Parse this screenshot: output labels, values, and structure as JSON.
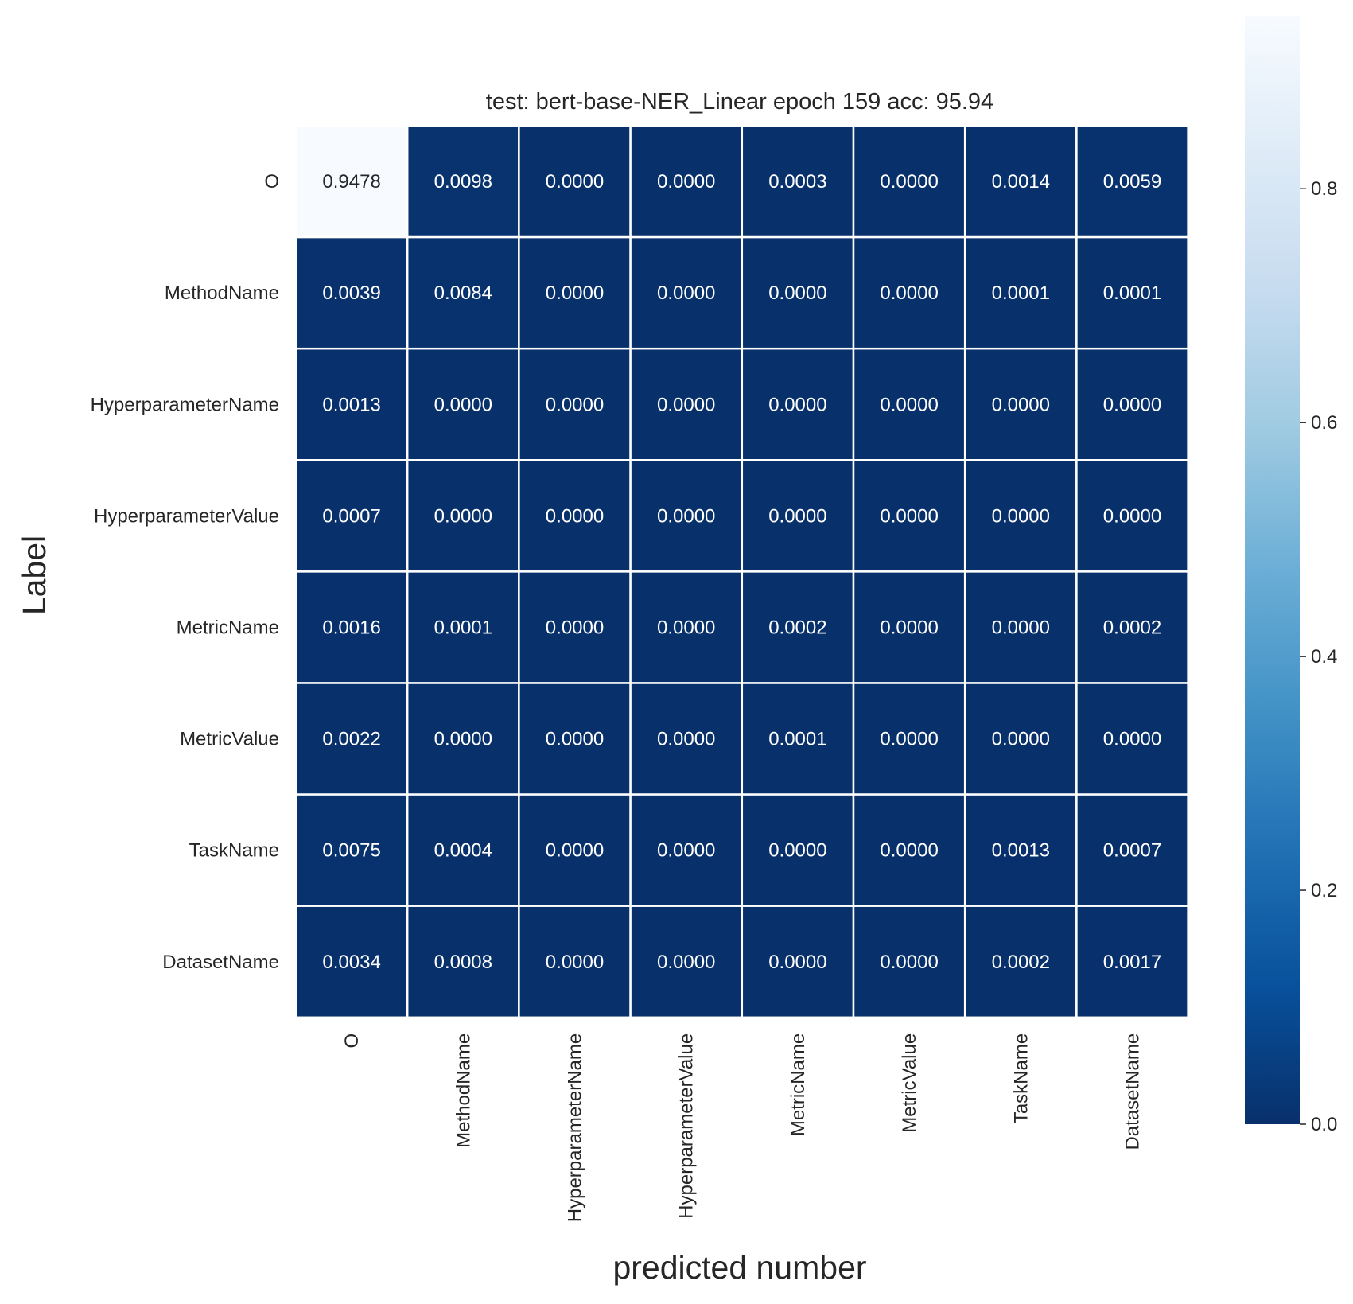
{
  "chart_data": {
    "type": "heatmap",
    "title": "test: bert-base-NER_Linear epoch 159 acc: 95.94",
    "xlabel": "predicted number",
    "ylabel": "Label",
    "x_categories": [
      "O",
      "MethodName",
      "HyperparameterName",
      "HyperparameterValue",
      "MetricName",
      "MetricValue",
      "TaskName",
      "DatasetName"
    ],
    "y_categories": [
      "O",
      "MethodName",
      "HyperparameterName",
      "HyperparameterValue",
      "MetricName",
      "MetricValue",
      "TaskName",
      "DatasetName"
    ],
    "values": [
      [
        0.9478,
        0.0098,
        0.0,
        0.0,
        0.0003,
        0.0,
        0.0014,
        0.0059
      ],
      [
        0.0039,
        0.0084,
        0.0,
        0.0,
        0.0,
        0.0,
        0.0001,
        0.0001
      ],
      [
        0.0013,
        0.0,
        0.0,
        0.0,
        0.0,
        0.0,
        0.0,
        0.0
      ],
      [
        0.0007,
        0.0,
        0.0,
        0.0,
        0.0,
        0.0,
        0.0,
        0.0
      ],
      [
        0.0016,
        0.0001,
        0.0,
        0.0,
        0.0002,
        0.0,
        0.0,
        0.0002
      ],
      [
        0.0022,
        0.0,
        0.0,
        0.0,
        0.0001,
        0.0,
        0.0,
        0.0
      ],
      [
        0.0075,
        0.0004,
        0.0,
        0.0,
        0.0,
        0.0,
        0.0013,
        0.0007
      ],
      [
        0.0034,
        0.0008,
        0.0,
        0.0,
        0.0,
        0.0,
        0.0002,
        0.0017
      ]
    ],
    "cell_labels": [
      [
        "0.9478",
        "0.0098",
        "0.0000",
        "0.0000",
        "0.0003",
        "0.0000",
        "0.0014",
        "0.0059"
      ],
      [
        "0.0039",
        "0.0084",
        "0.0000",
        "0.0000",
        "0.0000",
        "0.0000",
        "0.0001",
        "0.0001"
      ],
      [
        "0.0013",
        "0.0000",
        "0.0000",
        "0.0000",
        "0.0000",
        "0.0000",
        "0.0000",
        "0.0000"
      ],
      [
        "0.0007",
        "0.0000",
        "0.0000",
        "0.0000",
        "0.0000",
        "0.0000",
        "0.0000",
        "0.0000"
      ],
      [
        "0.0016",
        "0.0001",
        "0.0000",
        "0.0000",
        "0.0002",
        "0.0000",
        "0.0000",
        "0.0002"
      ],
      [
        "0.0022",
        "0.0000",
        "0.0000",
        "0.0000",
        "0.0001",
        "0.0000",
        "0.0000",
        "0.0000"
      ],
      [
        "0.0075",
        "0.0004",
        "0.0000",
        "0.0000",
        "0.0000",
        "0.0000",
        "0.0013",
        "0.0007"
      ],
      [
        "0.0034",
        "0.0008",
        "0.0000",
        "0.0000",
        "0.0000",
        "0.0000",
        "0.0002",
        "0.0017"
      ]
    ],
    "colormap": "Blues_r",
    "color_low": "#08306b",
    "color_high": "#f7fbff",
    "vmin": 0.0,
    "vmax": 0.9478,
    "colorbar_ticks": [
      0.0,
      0.2,
      0.4,
      0.6,
      0.8
    ],
    "colorbar_tick_labels": [
      "0.0",
      "0.2",
      "0.4",
      "0.6",
      "0.8"
    ],
    "cell_border_color": "#ffffff",
    "grid": false
  }
}
